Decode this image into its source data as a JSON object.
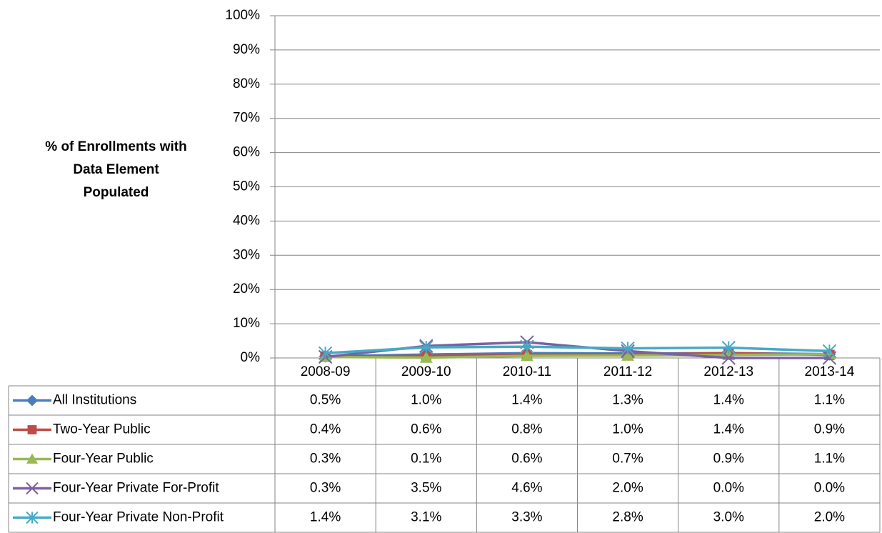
{
  "chart_data": {
    "type": "line",
    "y_label": "% of Enrollments with Data Element Populated",
    "categories": [
      "2008-09",
      "2009-10",
      "2010-11",
      "2011-12",
      "2012-13",
      "2013-14"
    ],
    "series": [
      {
        "name": "All Institutions",
        "color": "#4a7ebb",
        "marker": "diamond",
        "values": [
          0.5,
          1.0,
          1.4,
          1.3,
          1.4,
          1.1
        ],
        "value_labels": [
          "0.5%",
          "1.0%",
          "1.4%",
          "1.3%",
          "1.4%",
          "1.1%"
        ]
      },
      {
        "name": "Two-Year Public",
        "color": "#be4b48",
        "marker": "square",
        "values": [
          0.4,
          0.6,
          0.8,
          1.0,
          1.4,
          0.9
        ],
        "value_labels": [
          "0.4%",
          "0.6%",
          "0.8%",
          "1.0%",
          "1.4%",
          "0.9%"
        ]
      },
      {
        "name": "Four-Year Public",
        "color": "#98b954",
        "marker": "triangle",
        "values": [
          0.3,
          0.1,
          0.6,
          0.7,
          0.9,
          1.1
        ],
        "value_labels": [
          "0.3%",
          "0.1%",
          "0.6%",
          "0.7%",
          "0.9%",
          "1.1%"
        ]
      },
      {
        "name": "Four-Year Private For-Profit",
        "color": "#7d60a0",
        "marker": "x",
        "values": [
          0.3,
          3.5,
          4.6,
          2.0,
          0.0,
          0.0
        ],
        "value_labels": [
          "0.3%",
          "3.5%",
          "4.6%",
          "2.0%",
          "0.0%",
          "0.0%"
        ]
      },
      {
        "name": "Four-Year Private Non-Profit",
        "color": "#46aac5",
        "marker": "star",
        "values": [
          1.4,
          3.1,
          3.3,
          2.8,
          3.0,
          2.0
        ],
        "value_labels": [
          "1.4%",
          "3.1%",
          "3.3%",
          "2.8%",
          "3.0%",
          "2.0%"
        ]
      }
    ],
    "ylim": [
      0,
      100
    ],
    "yticks": [
      {
        "value": 0,
        "label": "0%"
      },
      {
        "value": 10,
        "label": "10%"
      },
      {
        "value": 20,
        "label": "20%"
      },
      {
        "value": 30,
        "label": "30%"
      },
      {
        "value": 40,
        "label": "40%"
      },
      {
        "value": 50,
        "label": "50%"
      },
      {
        "value": 60,
        "label": "60%"
      },
      {
        "value": 70,
        "label": "70%"
      },
      {
        "value": 80,
        "label": "80%"
      },
      {
        "value": 90,
        "label": "90%"
      },
      {
        "value": 100,
        "label": "100%"
      }
    ],
    "grid": true
  }
}
